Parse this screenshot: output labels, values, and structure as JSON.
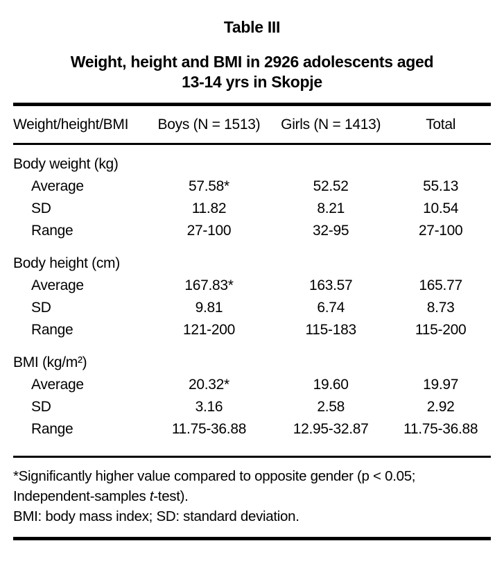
{
  "table": {
    "title": "Table III",
    "subtitle_line1": "Weight, height and BMI in 2926 adolescents aged",
    "subtitle_line2": "13-14 yrs in Skopje",
    "columns": [
      "Weight/height/BMI",
      "Boys (N = 1513)",
      "Girls (N = 1413)",
      "Total"
    ],
    "sections": [
      {
        "label": "Body weight (kg)",
        "rows": [
          {
            "label": "Average",
            "values": [
              "57.58*",
              "52.52",
              "55.13"
            ]
          },
          {
            "label": "SD",
            "values": [
              "11.82",
              "8.21",
              "10.54"
            ]
          },
          {
            "label": "Range",
            "values": [
              "27-100",
              "32-95",
              "27-100"
            ]
          }
        ]
      },
      {
        "label": "Body height (cm)",
        "rows": [
          {
            "label": "Average",
            "values": [
              "167.83*",
              "163.57",
              "165.77"
            ]
          },
          {
            "label": "SD",
            "values": [
              "9.81",
              "6.74",
              "8.73"
            ]
          },
          {
            "label": "Range",
            "values": [
              "121-200",
              "115-183",
              "115-200"
            ]
          }
        ]
      },
      {
        "label": "BMI (kg/m²)",
        "rows": [
          {
            "label": "Average",
            "values": [
              "20.32*",
              "19.60",
              "19.97"
            ]
          },
          {
            "label": "SD",
            "values": [
              "3.16",
              "2.58",
              "2.92"
            ]
          },
          {
            "label": "Range",
            "values": [
              "11.75-36.88",
              "12.95-32.87",
              "11.75-36.88"
            ]
          }
        ]
      }
    ],
    "footnotes": {
      "line1": "*Significantly higher value compared to opposite gender (p < 0.05;",
      "line2_pre": "Independent-samples ",
      "line2_italic": "t",
      "line2_post": "-test).",
      "line3": "BMI: body mass index; SD: standard deviation."
    },
    "colors": {
      "text": "#000000",
      "background": "#ffffff"
    }
  }
}
